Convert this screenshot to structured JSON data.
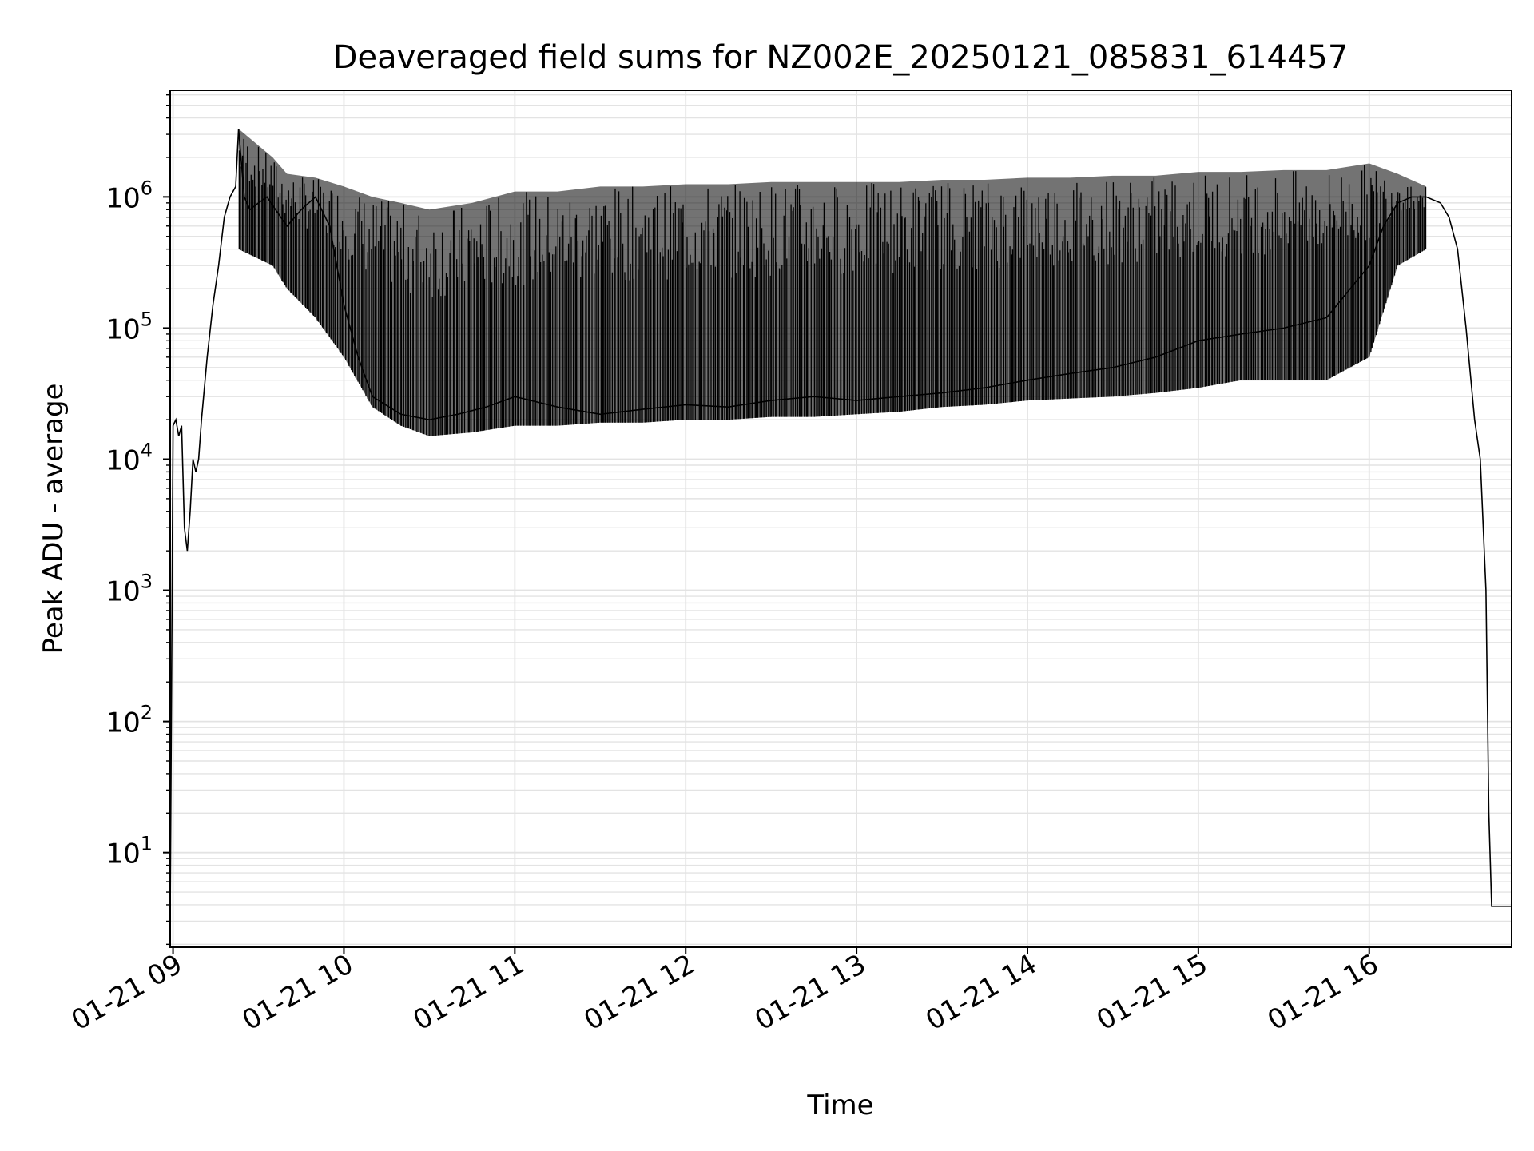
{
  "chart_data": {
    "type": "line",
    "title": "Deaveraged field sums for NZ002E_20250121_085831_614457",
    "xlabel": "Time",
    "ylabel": "Peak ADU - average",
    "yscale": "log",
    "grid": "major and minor, light gray",
    "legend": "none",
    "line_color": "#000000",
    "grid_color": "#e3e3e3",
    "xlim": [
      "2025-01-21 08:59",
      "2025-01-21 16:50"
    ],
    "ylim": [
      1.9,
      6500000
    ],
    "x_ticks": [
      {
        "value": "2025-01-21 09:00",
        "label": "01-21 09"
      },
      {
        "value": "2025-01-21 10:00",
        "label": "01-21 10"
      },
      {
        "value": "2025-01-21 11:00",
        "label": "01-21 11"
      },
      {
        "value": "2025-01-21 12:00",
        "label": "01-21 12"
      },
      {
        "value": "2025-01-21 13:00",
        "label": "01-21 13"
      },
      {
        "value": "2025-01-21 14:00",
        "label": "01-21 14"
      },
      {
        "value": "2025-01-21 15:00",
        "label": "01-21 15"
      },
      {
        "value": "2025-01-21 16:00",
        "label": "01-21 16"
      }
    ],
    "y_ticks": [
      {
        "value": 10,
        "base": "10",
        "exp": "1"
      },
      {
        "value": 100,
        "base": "10",
        "exp": "2"
      },
      {
        "value": 1000,
        "base": "10",
        "exp": "3"
      },
      {
        "value": 10000,
        "base": "10",
        "exp": "4"
      },
      {
        "value": 100000,
        "base": "10",
        "exp": "5"
      },
      {
        "value": 1000000,
        "base": "10",
        "exp": "6"
      }
    ],
    "series": [
      {
        "x": [
          "2025-01-21 08:59",
          "2025-01-21 09:00",
          "2025-01-21 09:01",
          "2025-01-21 09:02",
          "2025-01-21 09:03",
          "2025-01-21 09:04",
          "2025-01-21 09:05",
          "2025-01-21 09:06",
          "2025-01-21 09:07",
          "2025-01-21 09:08",
          "2025-01-21 09:09",
          "2025-01-21 09:10",
          "2025-01-21 09:12",
          "2025-01-21 09:14",
          "2025-01-21 09:16",
          "2025-01-21 09:18",
          "2025-01-21 09:20",
          "2025-01-21 09:22",
          "2025-01-21 09:23",
          "2025-01-21 09:25",
          "2025-01-21 09:27",
          "2025-01-21 09:30",
          "2025-01-21 09:33",
          "2025-01-21 09:36",
          "2025-01-21 09:40",
          "2025-01-21 09:45",
          "2025-01-21 09:50",
          "2025-01-21 09:55",
          "2025-01-21 10:00",
          "2025-01-21 10:05",
          "2025-01-21 10:10",
          "2025-01-21 10:20",
          "2025-01-21 10:30",
          "2025-01-21 10:40",
          "2025-01-21 10:50",
          "2025-01-21 11:00",
          "2025-01-21 11:15",
          "2025-01-21 11:30",
          "2025-01-21 11:45",
          "2025-01-21 12:00",
          "2025-01-21 12:15",
          "2025-01-21 12:30",
          "2025-01-21 12:45",
          "2025-01-21 13:00",
          "2025-01-21 13:15",
          "2025-01-21 13:30",
          "2025-01-21 13:45",
          "2025-01-21 14:00",
          "2025-01-21 14:15",
          "2025-01-21 14:30",
          "2025-01-21 14:45",
          "2025-01-21 15:00",
          "2025-01-21 15:15",
          "2025-01-21 15:30",
          "2025-01-21 15:45",
          "2025-01-21 16:00",
          "2025-01-21 16:05",
          "2025-01-21 16:10",
          "2025-01-21 16:15",
          "2025-01-21 16:20",
          "2025-01-21 16:25",
          "2025-01-21 16:28",
          "2025-01-21 16:31",
          "2025-01-21 16:34",
          "2025-01-21 16:37",
          "2025-01-21 16:39",
          "2025-01-21 16:41",
          "2025-01-21 16:42",
          "2025-01-21 16:43",
          "2025-01-21 16:44",
          "2025-01-21 16:45",
          "2025-01-21 16:47",
          "2025-01-21 16:50"
        ],
        "y": [
          3,
          18000,
          20000,
          15000,
          18000,
          3000,
          2000,
          4000,
          10000,
          8000,
          10000,
          20000,
          60000,
          150000,
          300000,
          700000,
          1000000,
          1200000,
          3300000,
          1000000,
          800000,
          900000,
          1000000,
          800000,
          600000,
          800000,
          1000000,
          600000,
          150000,
          60000,
          30000,
          22000,
          20000,
          22000,
          25000,
          30000,
          25000,
          22000,
          24000,
          26000,
          25000,
          28000,
          30000,
          28000,
          30000,
          32000,
          35000,
          40000,
          45000,
          50000,
          60000,
          80000,
          90000,
          100000,
          120000,
          300000,
          600000,
          900000,
          1000000,
          1000000,
          900000,
          700000,
          400000,
          100000,
          20000,
          10000,
          1000,
          20,
          3.9,
          3.9,
          3.9,
          3.9,
          3.9
        ]
      },
      {
        "name": "",
        "x": [
          "2025-01-21 09:23",
          "2025-01-21 09:35",
          "2025-01-21 09:40",
          "2025-01-21 09:50",
          "2025-01-21 10:00",
          "2025-01-21 10:10",
          "2025-01-21 10:20",
          "2025-01-21 10:30",
          "2025-01-21 10:45",
          "2025-01-21 11:00",
          "2025-01-21 11:15",
          "2025-01-21 11:30",
          "2025-01-21 11:45",
          "2025-01-21 12:00",
          "2025-01-21 12:15",
          "2025-01-21 12:30",
          "2025-01-21 12:45",
          "2025-01-21 13:00",
          "2025-01-21 13:15",
          "2025-01-21 13:30",
          "2025-01-21 13:45",
          "2025-01-21 14:00",
          "2025-01-21 14:15",
          "2025-01-21 14:30",
          "2025-01-21 14:45",
          "2025-01-21 15:00",
          "2025-01-21 15:15",
          "2025-01-21 15:30",
          "2025-01-21 15:45",
          "2025-01-21 16:00",
          "2025-01-21 16:10",
          "2025-01-21 16:20"
        ],
        "y_high": [
          3300000,
          2000000,
          1500000,
          1400000,
          1200000,
          1000000,
          900000,
          800000,
          900000,
          1100000,
          1100000,
          1200000,
          1200000,
          1250000,
          1250000,
          1300000,
          1300000,
          1300000,
          1300000,
          1350000,
          1350000,
          1400000,
          1400000,
          1450000,
          1450000,
          1550000,
          1550000,
          1600000,
          1600000,
          1800000,
          1500000,
          1200000
        ],
        "y_low": [
          400000,
          300000,
          200000,
          120000,
          60000,
          25000,
          18000,
          15000,
          16000,
          18000,
          18000,
          19000,
          19000,
          20000,
          20000,
          21000,
          21000,
          22000,
          23000,
          25000,
          26000,
          28000,
          29000,
          30000,
          32000,
          35000,
          40000,
          40000,
          40000,
          60000,
          300000,
          400000
        ]
      }
    ]
  }
}
